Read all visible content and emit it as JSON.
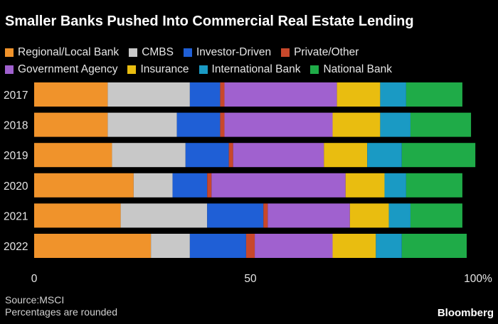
{
  "title": "Smaller Banks Pushed Into Commercial Real Estate Lending",
  "source": "Source:MSCI",
  "note": "Percentages are rounded",
  "brand": "Bloomberg",
  "chart_data": {
    "type": "bar",
    "orientation": "horizontal",
    "stacked": true,
    "title": "Smaller Banks Pushed Into Commercial Real Estate Lending",
    "xlabel": "",
    "ylabel": "",
    "xlim": [
      0,
      100
    ],
    "x_ticks": [
      "0",
      "50",
      "100%"
    ],
    "x_tick_values": [
      0,
      50,
      100
    ],
    "grid": false,
    "legend_position": "top",
    "categories": [
      "2017",
      "2018",
      "2019",
      "2020",
      "2021",
      "2022"
    ],
    "series": [
      {
        "name": "Regional/Local Bank",
        "color": "#f0932b",
        "values": [
          17,
          17,
          18,
          23,
          20,
          27
        ]
      },
      {
        "name": "CMBS",
        "color": "#c8c8c8",
        "values": [
          19,
          16,
          17,
          9,
          20,
          9
        ]
      },
      {
        "name": "Investor-Driven",
        "color": "#1f5fd6",
        "values": [
          7,
          10,
          10,
          8,
          13,
          13
        ]
      },
      {
        "name": "Private/Other",
        "color": "#c8482b",
        "values": [
          1,
          1,
          1,
          1,
          1,
          2
        ]
      },
      {
        "name": "Government Agency",
        "color": "#a061cf",
        "values": [
          26,
          25,
          21,
          31,
          19,
          18
        ]
      },
      {
        "name": "Insurance",
        "color": "#e9bd10",
        "values": [
          10,
          11,
          10,
          9,
          9,
          10
        ]
      },
      {
        "name": "International Bank",
        "color": "#1a9ac4",
        "values": [
          6,
          7,
          8,
          5,
          5,
          6
        ]
      },
      {
        "name": "National Bank",
        "color": "#1fab48",
        "values": [
          13,
          14,
          17,
          13,
          12,
          15
        ]
      }
    ]
  }
}
